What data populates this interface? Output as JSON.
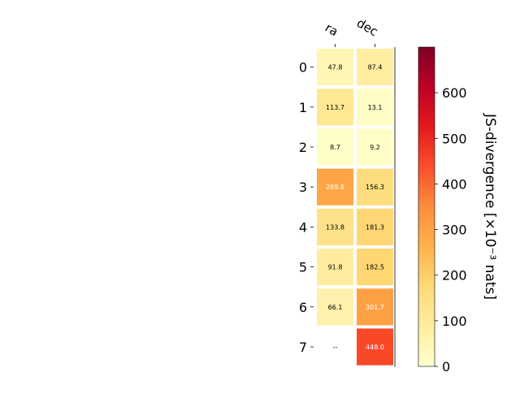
{
  "chart_data": {
    "type": "heatmap",
    "columns": [
      "ra",
      "dec"
    ],
    "rows": [
      "0",
      "1",
      "2",
      "3",
      "4",
      "5",
      "6",
      "7"
    ],
    "values": [
      [
        47.8,
        87.4
      ],
      [
        113.7,
        13.1
      ],
      [
        8.7,
        9.2
      ],
      [
        289.8,
        156.3
      ],
      [
        133.8,
        181.3
      ],
      [
        91.8,
        182.5
      ],
      [
        66.1,
        301.7
      ],
      [
        null,
        448.0
      ]
    ],
    "cell_labels": [
      [
        "47.8",
        "87.4"
      ],
      [
        "113.7",
        "13.1"
      ],
      [
        "8.7",
        "9.2"
      ],
      [
        "289.8",
        "156.3"
      ],
      [
        "133.8",
        "181.3"
      ],
      [
        "91.8",
        "182.5"
      ],
      [
        "66.1",
        "301.7"
      ],
      [
        "--",
        "448.0"
      ]
    ],
    "colorbar": {
      "label": "JS-divergence [×10⁻³ nats]",
      "range": [
        0,
        700
      ],
      "ticks": [
        0,
        100,
        200,
        300,
        400,
        500,
        600
      ],
      "colormap": "YlOrRd"
    },
    "colors": {
      "cell_border": "#ffffff",
      "dark_text_threshold": 250
    }
  }
}
